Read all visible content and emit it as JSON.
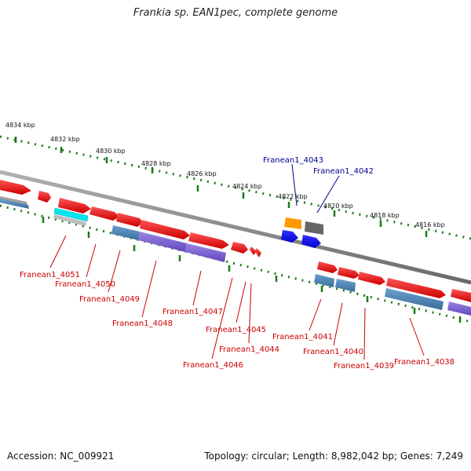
{
  "title": "Frankia sp. EAN1pec, complete genome",
  "footer": {
    "accession": "Accession: NC_009921",
    "summary": "Topology: circular; Length: 8,982,042 bp; Genes: 7,249"
  },
  "ruler_ticks": [
    "4834 kbp",
    "4832 kbp",
    "4830 kbp",
    "4828 kbp",
    "4826 kbp",
    "4824 kbp",
    "4822 kbp",
    "4820 kbp",
    "4818 kbp",
    "4816 kbp"
  ],
  "labels_above": [
    "Franean1_4043",
    "Franean1_4042"
  ],
  "labels_below": [
    "Franean1_4051",
    "Franean1_4050",
    "Franean1_4049",
    "Franean1_4048",
    "Franean1_4047",
    "Franean1_4046",
    "Franean1_4045",
    "Franean1_4044",
    "Franean1_4041",
    "Franean1_4040",
    "Franean1_4039",
    "Franean1_4038"
  ],
  "colors": {
    "label_above": "#00008b",
    "label_below": "#cc0000",
    "tick": "#1a7a1a",
    "backbone": "#8a8a8a",
    "gene_red": "#ee1111",
    "gene_cyan": "#00e5ee",
    "gene_orange": "#ff9900",
    "gene_gray": "#666666",
    "gene_blue": "#0000ee",
    "gene_steelblue": "#4f86b8",
    "gene_purple": "#7a60d0"
  }
}
